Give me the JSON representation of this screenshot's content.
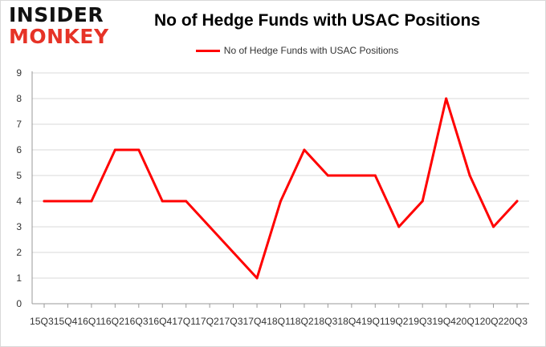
{
  "logo": {
    "line1": "INSIDER",
    "line2": "MONKEY"
  },
  "chart_data": {
    "type": "line",
    "title": "No of Hedge Funds with USAC Positions",
    "xlabel": "",
    "ylabel": "",
    "categories": [
      "Q3",
      "Q4",
      "Q1",
      "Q2",
      "Q3",
      "Q4",
      "Q1",
      "Q2",
      "Q3",
      "Q4",
      "Q1",
      "Q2",
      "Q3",
      "Q4",
      "Q1",
      "Q2",
      "Q3",
      "Q4",
      "Q1",
      "Q2",
      "Q3"
    ],
    "x_tick_text": "15Q315Q416Q116Q216Q316Q417Q117Q217Q317Q418Q118Q218Q318Q419Q119Q219Q319Q420Q120Q220Q3",
    "series": [
      {
        "name": "No of Hedge Funds with USAC Positions",
        "values": [
          4,
          4,
          4,
          6,
          6,
          4,
          4,
          3,
          2,
          1,
          4,
          6,
          5,
          5,
          5,
          3,
          4,
          8,
          5,
          3,
          4
        ],
        "color": "#ff0000"
      }
    ],
    "ylim": [
      0,
      9
    ],
    "yticks": [
      0,
      1,
      2,
      3,
      4,
      5,
      6,
      7,
      8,
      9
    ],
    "grid": true,
    "legend_position": "top"
  },
  "colors": {
    "line": "#ff0000",
    "logo_accent": "#e63327",
    "grid": "#d9d9d9"
  }
}
